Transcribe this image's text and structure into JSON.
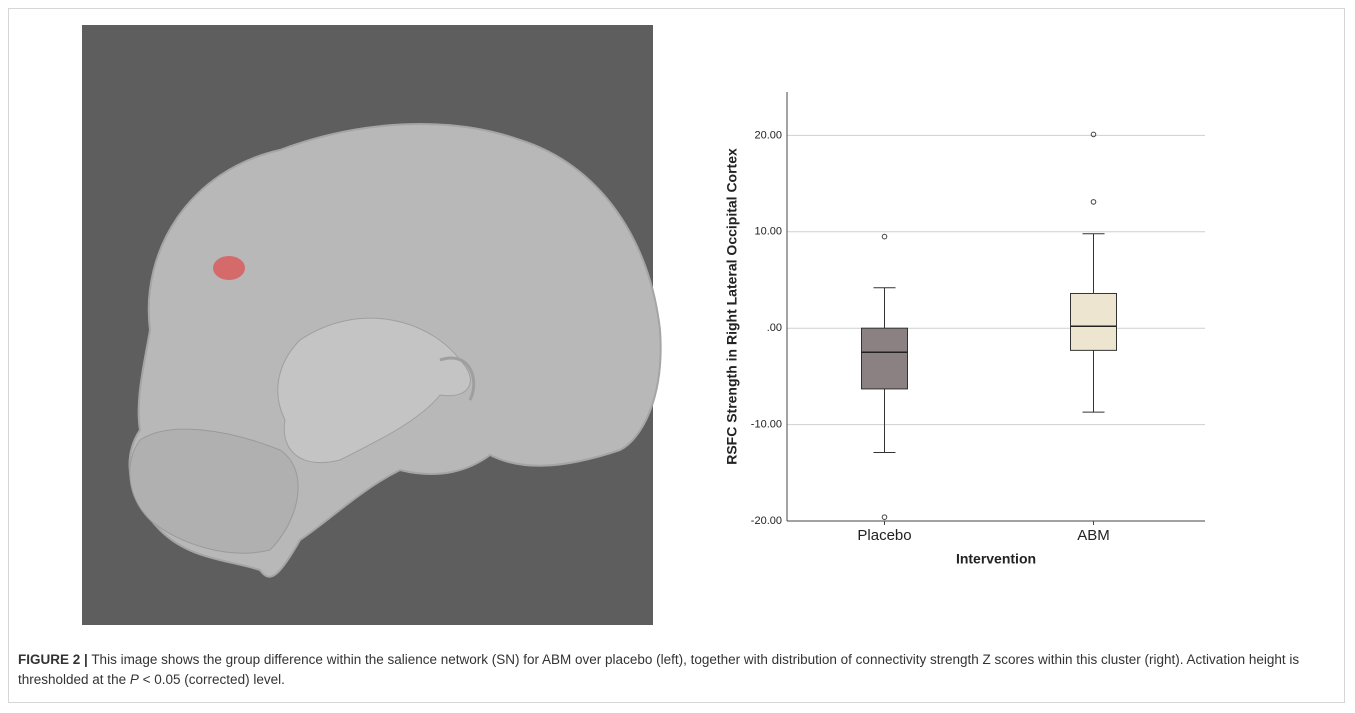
{
  "figure": {
    "caption": {
      "label": "FIGURE 2 |",
      "text_before": "This image shows the group difference within the salience network (SN) for ABM over placebo (left), together with distribution of connectivity strength Z scores within this cluster (right). Activation height is thresholded at the",
      "p": "P",
      "text_after": "< 0.05 (corrected) level."
    }
  },
  "chart_data": {
    "type": "box",
    "ylabel": "RSFC Strength in Right Lateral Occipital Cortex",
    "xlabel": "Intervention",
    "categories": [
      "Placebo",
      "ABM"
    ],
    "series": [
      {
        "name": "Placebo",
        "color": "#8b8182",
        "min": -12.9,
        "q1": -6.3,
        "median": -2.5,
        "q3": 0,
        "max": 4.2,
        "outliers": [
          9.5,
          -19.6
        ]
      },
      {
        "name": "ABM",
        "color": "#ede5cf",
        "min": -8.7,
        "q1": -2.3,
        "median": 0.2,
        "q3": 3.6,
        "max": 9.8,
        "outliers": [
          20.1,
          13.1
        ]
      }
    ],
    "ylim": [
      -20,
      24.5
    ],
    "yticks": [
      {
        "value": 20,
        "label": "20.00"
      },
      {
        "value": 10,
        "label": "10.00"
      },
      {
        "value": 0,
        "label": ".00"
      },
      {
        "value": -10,
        "label": "-10.00"
      },
      {
        "value": -20,
        "label": "-20.00"
      }
    ],
    "grid": true
  }
}
